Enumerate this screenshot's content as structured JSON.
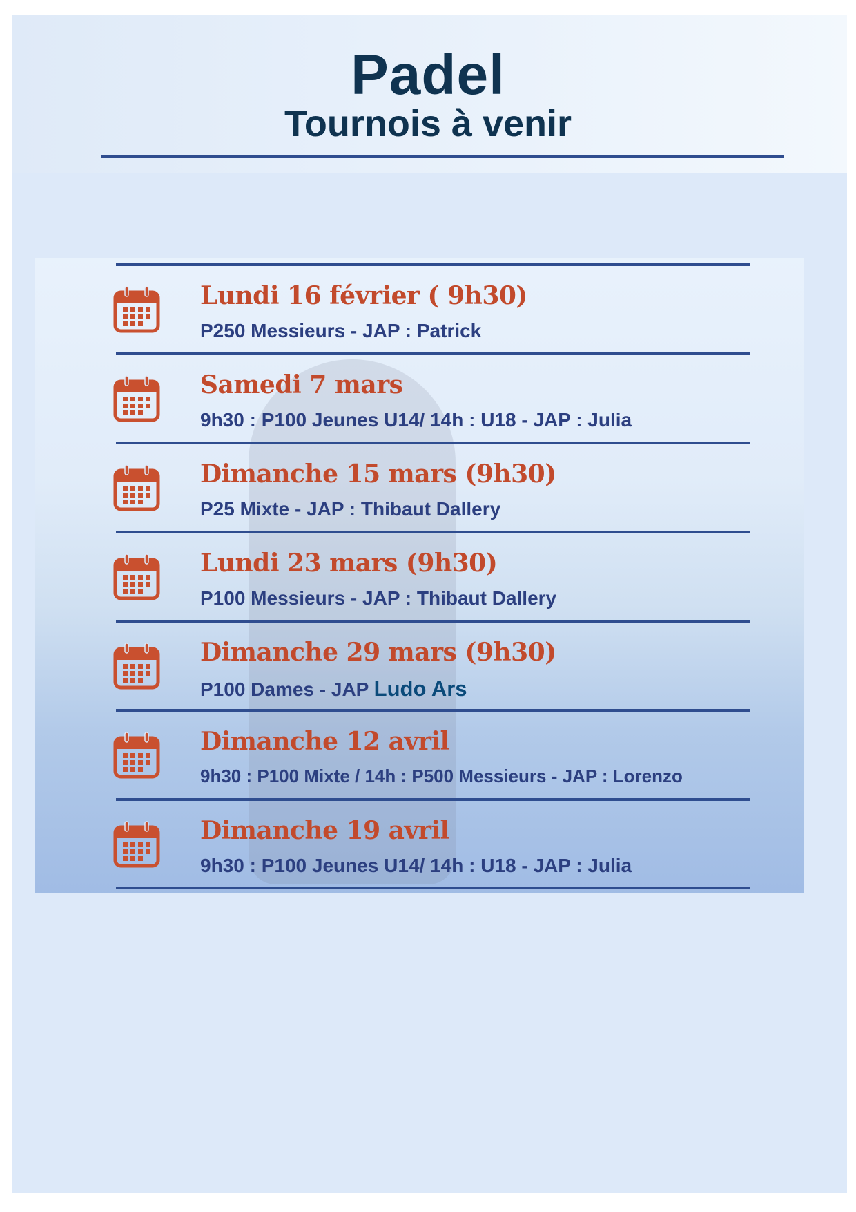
{
  "header": {
    "title": "Padel",
    "subtitle": "Tournois à venir"
  },
  "colors": {
    "title": "#0f3350",
    "date": "#c24a2c",
    "detail": "#2c3f80",
    "rule": "#2f4d8f",
    "background": "#dde9f9"
  },
  "icon": "calendar-icon",
  "events": [
    {
      "date": "Lundi 16 février ( 9h30)",
      "detail": "P250 Messieurs - JAP : Patrick"
    },
    {
      "date": "Samedi 7 mars",
      "detail": "9h30 : P100 Jeunes U14/ 14h : U18 - JAP :  Julia"
    },
    {
      "date": "Dimanche 15 mars (9h30)",
      "detail": "P25 Mixte  - JAP : Thibaut Dallery"
    },
    {
      "date": "Lundi 23 mars (9h30)",
      "detail": "P100 Messieurs - JAP : Thibaut Dallery"
    },
    {
      "date": "Dimanche  29  mars (9h30)",
      "detail": "P100 Dames - JAP ",
      "detail_extra": "Ludo Ars"
    },
    {
      "date": "Dimanche 12 avril",
      "detail": "9h30 : P100 Mixte / 14h : P500 Messieurs - JAP : Lorenzo"
    },
    {
      "date": "Dimanche 19 avril",
      "detail": "9h30 : P100 Jeunes U14/ 14h : U18 - JAP : Julia"
    }
  ]
}
